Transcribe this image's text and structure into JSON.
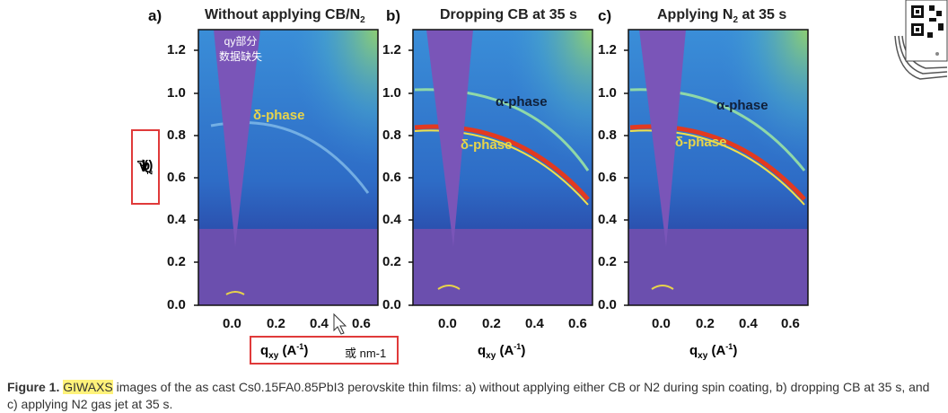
{
  "panels": [
    {
      "letter": "a)",
      "title": "Without applying CB/N",
      "title_sub": "2",
      "annotations": [
        "δ-phase"
      ]
    },
    {
      "letter": "b)",
      "title": "Dropping CB at 35 s",
      "title_sub": "",
      "annotations": [
        "α-phase",
        "δ-phase"
      ]
    },
    {
      "letter": "c)",
      "title": "Applying N",
      "title_sub": "2",
      "title_tail": " at 35 s",
      "annotations": [
        "α-phase",
        "δ-phase"
      ]
    }
  ],
  "y_ticks": [
    "1.2",
    "1.0",
    "0.8",
    "0.6",
    "0.4",
    "0.2",
    "0.0"
  ],
  "x_ticks": [
    "0.0",
    "0.2",
    "0.4",
    "0.6"
  ],
  "y_axis_label": "q",
  "y_axis_label_sub": "z",
  "y_axis_label_units": "(A",
  "y_axis_label_units_sup": "-1",
  "y_axis_label_units_close": ")",
  "x_axis_label": "q",
  "x_axis_label_sub": "xy",
  "x_axis_label_units": "(A",
  "x_axis_label_units_sup": "-1",
  "x_axis_label_units_close": ")",
  "overlay_note_line1": "qy部分",
  "overlay_note_line2": "数据缺失",
  "unit_note": "或 nm-1",
  "caption": {
    "prefix": "Figure 1.",
    "highlight": "GIWAXS",
    "text": " images of the as cast Cs0.15FA0.85PbI3 perovskite thin films: a) without applying either CB or N2 during spin coating, b) dropping CB at 35 s, and c) applying N2 gas jet at 35 s."
  },
  "colors": {
    "background_field": "#2a67c8",
    "beamstop": "#7a55b8",
    "annotation": "#e8d44a",
    "annotation_dark": "#10203a",
    "ring_alpha": "#8fd8a8",
    "ring_delta": "#e23a20",
    "highlight": "#fff27a",
    "box": "#e03a3a"
  }
}
